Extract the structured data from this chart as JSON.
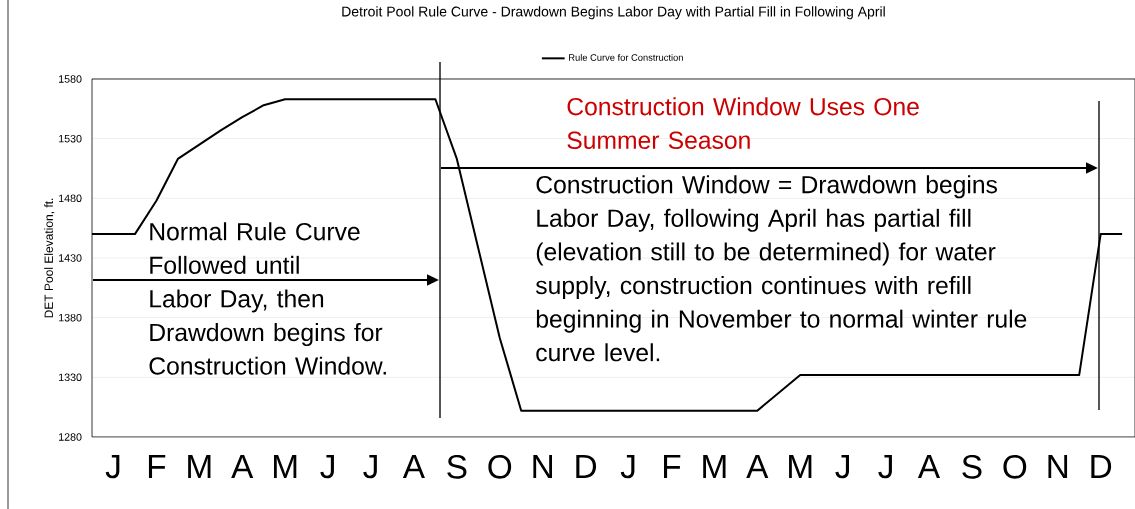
{
  "chart_data": {
    "type": "line",
    "title": "Detroit Pool Rule Curve - Drawdown Begins Labor Day with Partial Fill in Following April",
    "ylabel": "DET Pool Elevation, ft.",
    "categories": [
      null,
      "J",
      null,
      "F",
      null,
      "M",
      null,
      "A",
      null,
      "M",
      null,
      "J",
      null,
      "J",
      null,
      "A",
      null,
      "S",
      null,
      "O",
      null,
      "N",
      null,
      "D",
      null,
      "J",
      null,
      "F",
      null,
      "M",
      null,
      "A",
      null,
      "M",
      null,
      "J",
      null,
      "J",
      null,
      "A",
      null,
      "S",
      null,
      "O",
      null,
      "N",
      null,
      "D",
      null
    ],
    "series": [
      {
        "name": "Rule Curve for Construction",
        "color": "#000000",
        "values": [
          1450,
          1450,
          1450,
          1478,
          1513,
          1525,
          1537,
          1548,
          1558,
          1563,
          1563,
          1563,
          1563,
          1563,
          1563,
          1563,
          1563,
          1513,
          1438,
          1363,
          1302,
          1302,
          1302,
          1302,
          1302,
          1302,
          1302,
          1302,
          1302,
          1302,
          1302,
          1302,
          1317,
          1332,
          1332,
          1332,
          1332,
          1332,
          1332,
          1332,
          1332,
          1332,
          1332,
          1332,
          1332,
          1332,
          1332,
          1450,
          1450
        ]
      }
    ],
    "ylim": [
      1280,
      1580
    ],
    "yticks": [
      1280,
      1330,
      1380,
      1430,
      1480,
      1530,
      1580
    ],
    "annotations": [
      "Normal Rule Curve Followed until Labor Day, then Drawdown begins for Construction Window.",
      "Construction Window Uses One Summer Season",
      "Construction Window = Drawdown begins Labor Day, following April has partial fill (elevation still to be determined) for water supply, construction continues with refill beginning in November to normal winter rule curve level."
    ],
    "grid": "y",
    "legend": "top"
  }
}
